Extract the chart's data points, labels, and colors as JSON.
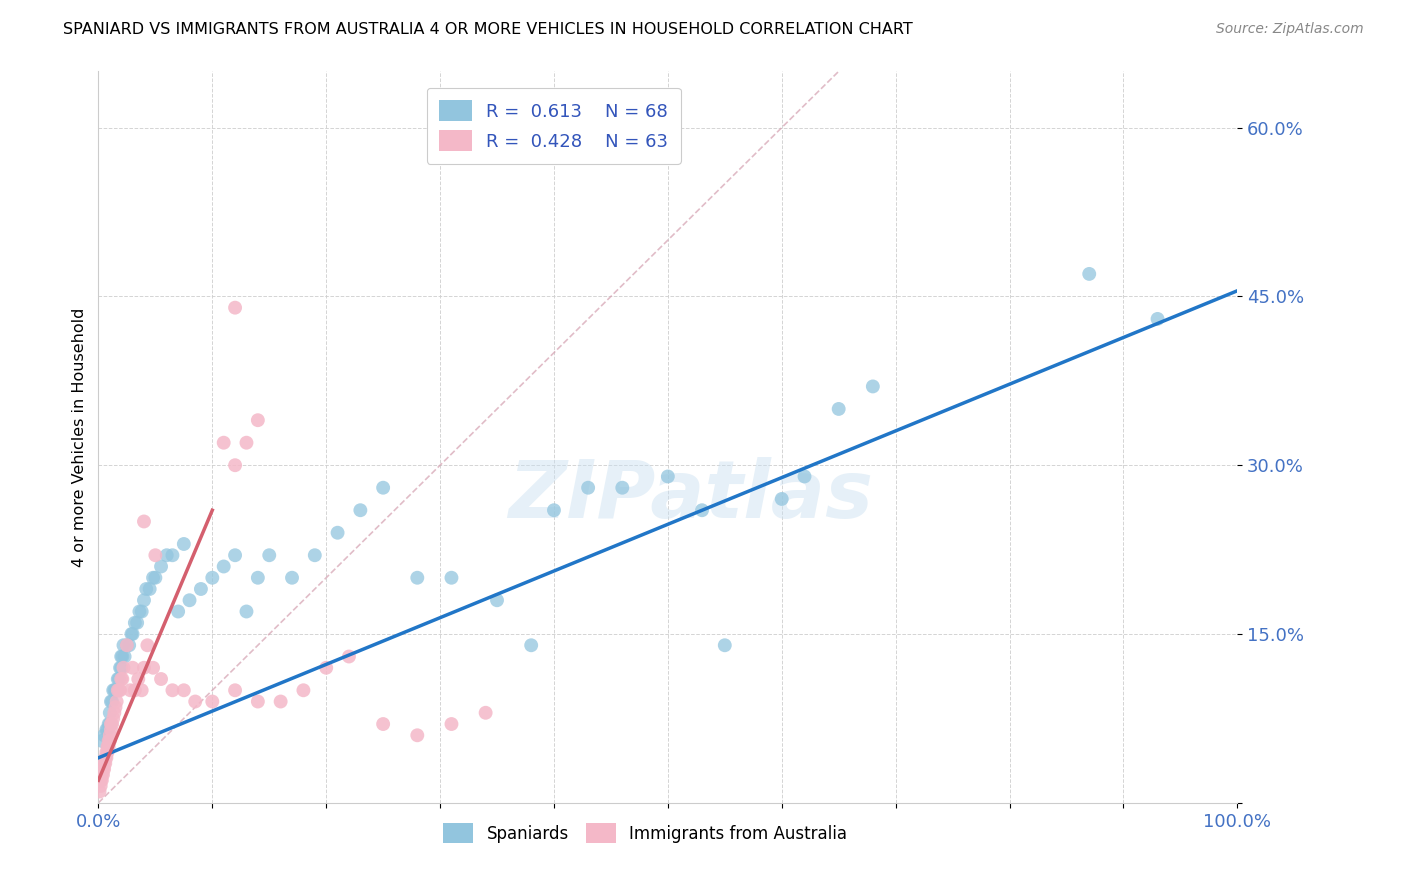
{
  "title": "SPANIARD VS IMMIGRANTS FROM AUSTRALIA 4 OR MORE VEHICLES IN HOUSEHOLD CORRELATION CHART",
  "source": "Source: ZipAtlas.com",
  "ylabel": "4 or more Vehicles in Household",
  "xlim": [
    0,
    1.0
  ],
  "ylim": [
    0,
    0.65
  ],
  "r_blue": 0.613,
  "n_blue": 68,
  "r_pink": 0.428,
  "n_pink": 63,
  "blue_color": "#92c5de",
  "pink_color": "#f4b8c8",
  "blue_line_color": "#2176c7",
  "pink_line_color": "#d45f6e",
  "grid_color": "#d0d0d0",
  "watermark": "ZIPatlas",
  "legend_labels": [
    "Spaniards",
    "Immigrants from Australia"
  ],
  "blue_scatter_x": [
    0.003,
    0.005,
    0.007,
    0.008,
    0.009,
    0.01,
    0.01,
    0.011,
    0.012,
    0.013,
    0.014,
    0.015,
    0.016,
    0.017,
    0.018,
    0.019,
    0.02,
    0.02,
    0.021,
    0.022,
    0.023,
    0.025,
    0.027,
    0.029,
    0.03,
    0.032,
    0.034,
    0.036,
    0.038,
    0.04,
    0.042,
    0.045,
    0.048,
    0.05,
    0.055,
    0.06,
    0.065,
    0.07,
    0.075,
    0.08,
    0.09,
    0.1,
    0.11,
    0.12,
    0.13,
    0.14,
    0.15,
    0.17,
    0.19,
    0.21,
    0.23,
    0.25,
    0.28,
    0.31,
    0.35,
    0.38,
    0.4,
    0.43,
    0.46,
    0.5,
    0.53,
    0.55,
    0.6,
    0.62,
    0.65,
    0.68,
    0.87,
    0.93
  ],
  "blue_scatter_y": [
    0.055,
    0.06,
    0.065,
    0.065,
    0.07,
    0.07,
    0.08,
    0.09,
    0.09,
    0.1,
    0.1,
    0.1,
    0.1,
    0.11,
    0.11,
    0.12,
    0.12,
    0.13,
    0.13,
    0.14,
    0.13,
    0.14,
    0.14,
    0.15,
    0.15,
    0.16,
    0.16,
    0.17,
    0.17,
    0.18,
    0.19,
    0.19,
    0.2,
    0.2,
    0.21,
    0.22,
    0.22,
    0.17,
    0.23,
    0.18,
    0.19,
    0.2,
    0.21,
    0.22,
    0.17,
    0.2,
    0.22,
    0.2,
    0.22,
    0.24,
    0.26,
    0.28,
    0.2,
    0.2,
    0.18,
    0.14,
    0.26,
    0.28,
    0.28,
    0.29,
    0.26,
    0.14,
    0.27,
    0.29,
    0.35,
    0.37,
    0.47,
    0.43
  ],
  "pink_scatter_x": [
    0.001,
    0.002,
    0.002,
    0.003,
    0.003,
    0.004,
    0.004,
    0.005,
    0.005,
    0.006,
    0.006,
    0.007,
    0.007,
    0.008,
    0.008,
    0.009,
    0.009,
    0.01,
    0.01,
    0.011,
    0.011,
    0.012,
    0.013,
    0.014,
    0.015,
    0.016,
    0.017,
    0.018,
    0.019,
    0.02,
    0.021,
    0.022,
    0.025,
    0.028,
    0.03,
    0.032,
    0.035,
    0.038,
    0.04,
    0.043,
    0.048,
    0.055,
    0.065,
    0.075,
    0.085,
    0.1,
    0.12,
    0.14,
    0.16,
    0.18,
    0.2,
    0.22,
    0.25,
    0.28,
    0.31,
    0.34,
    0.04,
    0.05,
    0.11,
    0.12,
    0.13,
    0.14,
    0.12
  ],
  "pink_scatter_y": [
    0.01,
    0.015,
    0.02,
    0.02,
    0.025,
    0.025,
    0.03,
    0.03,
    0.035,
    0.035,
    0.04,
    0.04,
    0.045,
    0.045,
    0.05,
    0.05,
    0.055,
    0.055,
    0.06,
    0.065,
    0.07,
    0.07,
    0.075,
    0.08,
    0.085,
    0.09,
    0.1,
    0.1,
    0.1,
    0.11,
    0.11,
    0.12,
    0.14,
    0.1,
    0.12,
    0.1,
    0.11,
    0.1,
    0.12,
    0.14,
    0.12,
    0.11,
    0.1,
    0.1,
    0.09,
    0.09,
    0.1,
    0.09,
    0.09,
    0.1,
    0.12,
    0.13,
    0.07,
    0.06,
    0.07,
    0.08,
    0.25,
    0.22,
    0.32,
    0.3,
    0.32,
    0.34,
    0.44
  ],
  "blue_line_x": [
    0.0,
    1.0
  ],
  "blue_line_y": [
    0.04,
    0.455
  ],
  "pink_line_x": [
    0.0,
    0.1
  ],
  "pink_line_y": [
    0.02,
    0.26
  ],
  "diag_line_x": [
    0.0,
    0.65
  ],
  "diag_line_y": [
    0.0,
    0.65
  ]
}
